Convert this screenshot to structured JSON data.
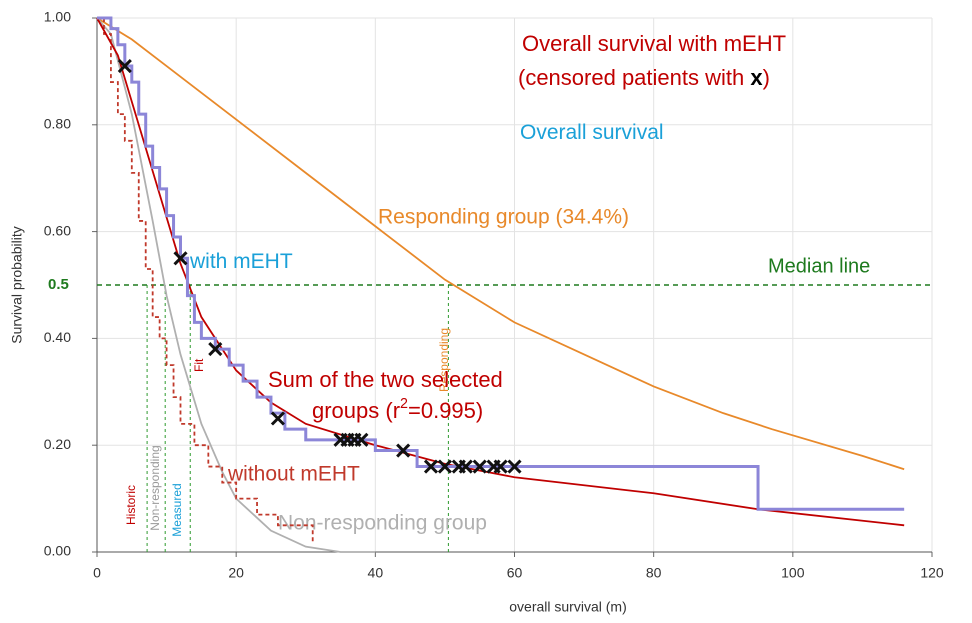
{
  "chart_data": {
    "type": "line",
    "xlabel": "overall survival (m)",
    "ylabel": "Survival probability",
    "xlim": [
      0,
      120
    ],
    "ylim": [
      0,
      1
    ],
    "xticks": [
      0,
      20,
      40,
      60,
      80,
      100,
      120
    ],
    "yticks": [
      {
        "value": 0,
        "label": "0.00"
      },
      {
        "value": 0.2,
        "label": "0.20"
      },
      {
        "value": 0.4,
        "label": "0.40"
      },
      {
        "value": 0.6,
        "label": "0.60"
      },
      {
        "value": 0.8,
        "label": "0.80"
      },
      {
        "value": 1,
        "label": "1.00"
      }
    ],
    "grid": true,
    "series": [
      {
        "name": "Responding group (34.4%)",
        "color": "#e8892a",
        "x": [
          0,
          5,
          10,
          20,
          30,
          40,
          50,
          60,
          70,
          80,
          90,
          97,
          110,
          116
        ],
        "values": [
          1,
          0.96,
          0.91,
          0.81,
          0.71,
          0.61,
          0.51,
          0.43,
          0.37,
          0.31,
          0.26,
          0.23,
          0.18,
          0.155
        ]
      },
      {
        "name": "Non-responding group",
        "color": "#b0b0b0",
        "x": [
          0,
          2,
          5,
          8,
          10,
          12,
          15,
          18,
          20,
          25,
          30,
          35,
          40
        ],
        "values": [
          1,
          0.97,
          0.82,
          0.62,
          0.48,
          0.37,
          0.24,
          0.15,
          0.1,
          0.04,
          0.01,
          0,
          0
        ]
      },
      {
        "name": "without mEHT",
        "color": "#c0392b",
        "dashed": true,
        "step": true,
        "x": [
          0,
          1,
          2,
          3,
          4,
          5,
          6,
          7,
          8,
          9,
          10,
          11,
          12,
          14,
          16,
          18,
          20,
          23,
          26,
          31
        ],
        "values": [
          1,
          0.97,
          0.88,
          0.82,
          0.77,
          0.71,
          0.62,
          0.53,
          0.44,
          0.4,
          0.35,
          0.29,
          0.24,
          0.2,
          0.16,
          0.13,
          0.1,
          0.07,
          0.05,
          0.02
        ]
      },
      {
        "color": "#c00000",
        "x": [
          0,
          3,
          6,
          9,
          12,
          15,
          20,
          25,
          30,
          40,
          50,
          60,
          80,
          95,
          116
        ],
        "values": [
          1,
          0.93,
          0.8,
          0.67,
          0.54,
          0.44,
          0.34,
          0.28,
          0.24,
          0.2,
          0.165,
          0.14,
          0.11,
          0.08,
          0.05
        ]
      },
      {
        "color": "#8c86d8",
        "step": true,
        "x": [
          0,
          2,
          3,
          4,
          5,
          6,
          7,
          8,
          9,
          10,
          11,
          12,
          13,
          14,
          15,
          17,
          19,
          21,
          23,
          25,
          27,
          30,
          40,
          46,
          95,
          116
        ],
        "values": [
          1,
          0.98,
          0.95,
          0.91,
          0.88,
          0.82,
          0.76,
          0.72,
          0.68,
          0.63,
          0.59,
          0.55,
          0.48,
          0.43,
          0.4,
          0.38,
          0.35,
          0.32,
          0.29,
          0.26,
          0.23,
          0.21,
          0.19,
          0.16,
          0.08,
          0.08
        ]
      }
    ],
    "censored": {
      "color": "#111111",
      "x": [
        4,
        12,
        17,
        26,
        35,
        36,
        37,
        38,
        44,
        48,
        50,
        52,
        53,
        55,
        57,
        58,
        60
      ],
      "values": [
        0.91,
        0.55,
        0.38,
        0.25,
        0.21,
        0.21,
        0.21,
        0.21,
        0.19,
        0.16,
        0.16,
        0.16,
        0.16,
        0.16,
        0.16,
        0.16,
        0.16
      ]
    },
    "median": {
      "value": 0.5,
      "label": "0.5",
      "text": "Median line",
      "color": "#1e7a1e"
    },
    "vlines": [
      {
        "x": 7.2,
        "label": "Historic",
        "color": "#c00000"
      },
      {
        "x": 9.8,
        "label": "Non-responding",
        "color": "#999999"
      },
      {
        "x": 13.4,
        "label": "Measured",
        "color": "#1aa0d8"
      },
      {
        "x": 50.5,
        "label": "Responding",
        "color": "#e8892a"
      }
    ],
    "annotations": [
      {
        "parts": [
          {
            "text": "Overall survival with mEHT",
            "color": "#c00000"
          }
        ]
      },
      {
        "parts": [
          {
            "text": "(censored patients with ",
            "color": "#c00000"
          },
          {
            "text": "x",
            "color": "#000000",
            "bold": true
          },
          {
            "text": ")",
            "color": "#c00000"
          }
        ]
      },
      {
        "parts": [
          {
            "text": "Overall survival",
            "color": "#1aa0d8"
          }
        ]
      },
      {
        "parts": [
          {
            "text": "with mEHT",
            "color": "#1aa0d8"
          }
        ]
      },
      {
        "parts": [
          {
            "text": "Sum of the two selected",
            "color": "#c00000"
          }
        ]
      },
      {
        "parts": [
          {
            "text": "groups (r",
            "color": "#c00000"
          },
          {
            "text": "2",
            "color": "#c00000",
            "sup": true
          },
          {
            "text": "=0.995)",
            "color": "#c00000"
          }
        ]
      },
      {
        "parts": [
          {
            "text": "Fit",
            "color": "#c00000"
          }
        ]
      }
    ]
  }
}
